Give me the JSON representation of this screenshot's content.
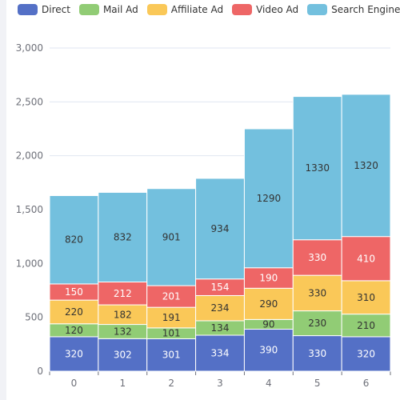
{
  "chart_data": {
    "type": "bar",
    "stacked": true,
    "categories": [
      "0",
      "1",
      "2",
      "3",
      "4",
      "5",
      "6"
    ],
    "series": [
      {
        "name": "Direct",
        "color": "#5470c6",
        "values": [
          320,
          302,
          301,
          334,
          390,
          330,
          320
        ]
      },
      {
        "name": "Mail Ad",
        "color": "#91cc75",
        "values": [
          120,
          132,
          101,
          134,
          90,
          230,
          210
        ]
      },
      {
        "name": "Affiliate Ad",
        "color": "#fac858",
        "values": [
          220,
          182,
          191,
          234,
          290,
          330,
          310
        ]
      },
      {
        "name": "Video Ad",
        "color": "#ee6666",
        "values": [
          150,
          212,
          201,
          154,
          190,
          330,
          410
        ]
      },
      {
        "name": "Search Engine",
        "color": "#73c0de",
        "values": [
          820,
          832,
          901,
          934,
          1290,
          1330,
          1320
        ]
      }
    ],
    "ylim": [
      0,
      3000
    ],
    "yticks": [
      "0",
      "500",
      "1,000",
      "1,500",
      "2,000",
      "2,500",
      "3,000"
    ],
    "ytick_values": [
      0,
      500,
      1000,
      1500,
      2000,
      2500,
      3000
    ],
    "grid": true,
    "legend_position": "top"
  }
}
